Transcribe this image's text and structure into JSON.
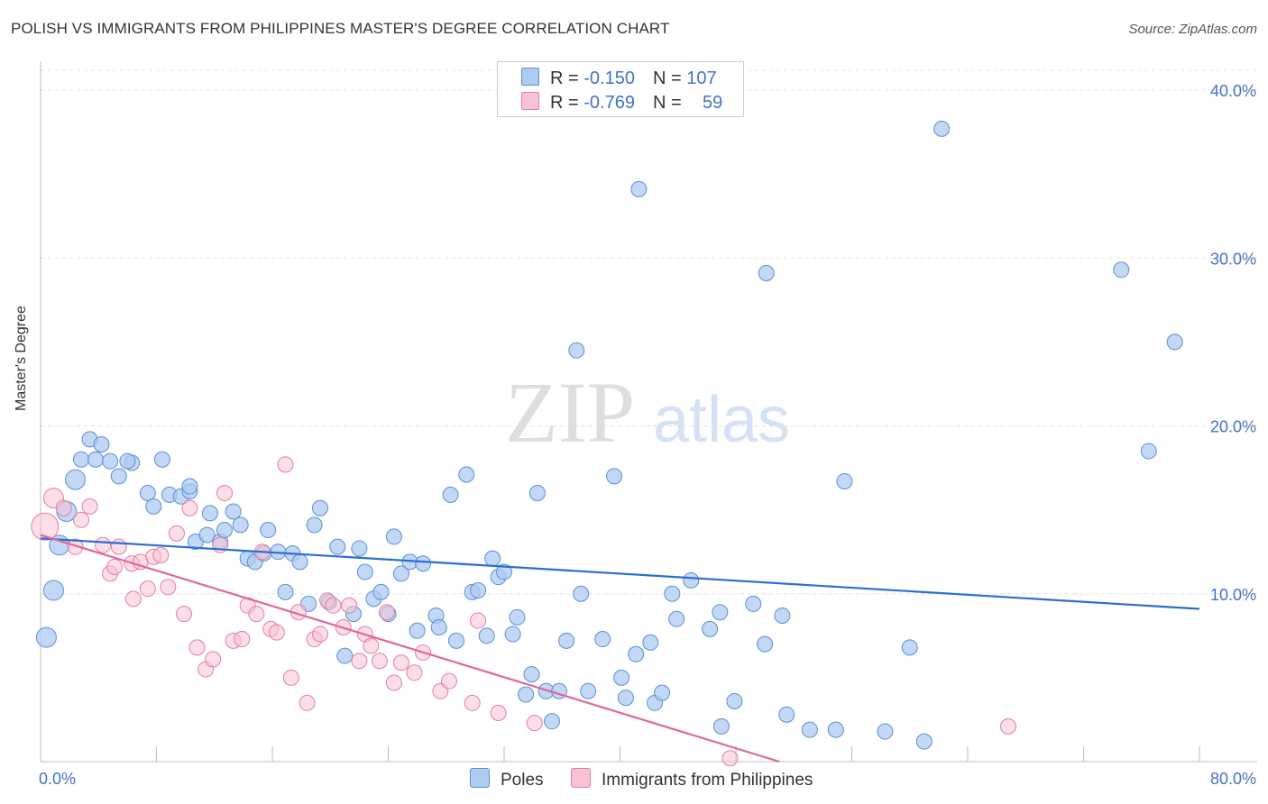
{
  "title": "POLISH VS IMMIGRANTS FROM PHILIPPINES MASTER'S DEGREE CORRELATION CHART",
  "source": "Source: ZipAtlas.com",
  "watermark": {
    "zip": "ZIP",
    "atlas": "atlas"
  },
  "colors": {
    "poles_fill": "#aecbf0",
    "poles_stroke": "#5b8fd6",
    "poles_line": "#2a6fd0",
    "phil_fill": "#f7c2d3",
    "phil_stroke": "#e17fa3",
    "phil_line": "#e0679a",
    "axis_label": "#4472c4",
    "grid": "#e0e0e0"
  },
  "legend": {
    "rows": [
      {
        "r_label": "R = ",
        "r_value": "-0.150",
        "n_label": "N = ",
        "n_value": "107"
      },
      {
        "r_label": "R = ",
        "r_value": "-0.769",
        "n_label": "N = ",
        "n_value": "59"
      }
    ]
  },
  "chart_data": {
    "type": "scatter",
    "title": "POLISH VS IMMIGRANTS FROM PHILIPPINES MASTER'S DEGREE CORRELATION CHART",
    "xlabel": "",
    "ylabel": "Master's Degree",
    "xlim": [
      0,
      80
    ],
    "ylim": [
      0,
      40
    ],
    "x_tick_labels": [
      "0.0%",
      "80.0%"
    ],
    "y_ticks": [
      10,
      20,
      30,
      40
    ],
    "y_tick_labels": [
      "10.0%",
      "20.0%",
      "30.0%",
      "40.0%"
    ],
    "grid": true,
    "legend_position": "top-center",
    "series": [
      {
        "name": "Poles",
        "trend": {
          "x0": 0,
          "y0": 13.3,
          "x1": 80,
          "y1": 9.1
        },
        "points": [
          [
            0.4,
            7.4,
            2
          ],
          [
            0.9,
            10.2,
            2
          ],
          [
            1.3,
            12.9,
            2
          ],
          [
            1.8,
            14.9,
            2
          ],
          [
            2.4,
            16.8,
            2
          ],
          [
            2.8,
            18.0,
            1.5
          ],
          [
            3.4,
            19.2,
            1.5
          ],
          [
            3.8,
            18.0,
            1.5
          ],
          [
            4.2,
            18.9,
            1.5
          ],
          [
            4.8,
            17.9,
            1.5
          ],
          [
            5.4,
            17.0,
            1.5
          ],
          [
            6.3,
            17.8,
            1.5
          ],
          [
            6.0,
            17.9,
            1.5
          ],
          [
            7.4,
            16.0,
            1.5
          ],
          [
            7.8,
            15.2,
            1.5
          ],
          [
            8.4,
            18.0,
            1.5
          ],
          [
            8.9,
            15.9,
            1.5
          ],
          [
            9.7,
            15.8,
            1.5
          ],
          [
            10.3,
            16.1,
            1.5
          ],
          [
            10.3,
            16.4,
            1.5
          ],
          [
            10.7,
            13.1,
            1.5
          ],
          [
            11.5,
            13.5,
            1.5
          ],
          [
            11.7,
            14.8,
            1.5
          ],
          [
            12.4,
            13.1,
            1.5
          ],
          [
            12.7,
            13.8,
            1.5
          ],
          [
            13.3,
            14.9,
            1.5
          ],
          [
            13.8,
            14.1,
            1.5
          ],
          [
            14.3,
            12.1,
            1.5
          ],
          [
            14.8,
            11.9,
            1.5
          ],
          [
            15.4,
            12.4,
            1.5
          ],
          [
            15.7,
            13.8,
            1.5
          ],
          [
            16.4,
            12.5,
            1.5
          ],
          [
            16.9,
            10.1,
            1.5
          ],
          [
            17.4,
            12.4,
            1.5
          ],
          [
            17.9,
            11.9,
            1.5
          ],
          [
            18.5,
            9.4,
            1.5
          ],
          [
            18.9,
            14.1,
            1.5
          ],
          [
            19.3,
            15.1,
            1.5
          ],
          [
            19.9,
            9.5,
            1.5
          ],
          [
            20.5,
            12.8,
            1.5
          ],
          [
            21.0,
            6.3,
            1.5
          ],
          [
            21.6,
            8.8,
            1.5
          ],
          [
            22.0,
            12.7,
            1.5
          ],
          [
            22.4,
            11.3,
            1.5
          ],
          [
            23.0,
            9.7,
            1.5
          ],
          [
            23.5,
            10.1,
            1.5
          ],
          [
            24.0,
            8.8,
            1.5
          ],
          [
            24.4,
            13.4,
            1.5
          ],
          [
            24.9,
            11.2,
            1.5
          ],
          [
            25.5,
            11.9,
            1.5
          ],
          [
            26.0,
            7.8,
            1.5
          ],
          [
            26.4,
            11.8,
            1.5
          ],
          [
            27.3,
            8.7,
            1.5
          ],
          [
            27.5,
            8.0,
            1.5
          ],
          [
            28.3,
            15.9,
            1.5
          ],
          [
            28.7,
            7.2,
            1.5
          ],
          [
            29.4,
            17.1,
            1.5
          ],
          [
            29.8,
            10.1,
            1.5
          ],
          [
            30.2,
            10.2,
            1.5
          ],
          [
            30.8,
            7.5,
            1.5
          ],
          [
            31.2,
            12.1,
            1.5
          ],
          [
            31.6,
            11.0,
            1.5
          ],
          [
            32.0,
            11.3,
            1.5
          ],
          [
            32.6,
            7.6,
            1.5
          ],
          [
            32.9,
            8.6,
            1.5
          ],
          [
            33.5,
            4.0,
            1.5
          ],
          [
            33.9,
            5.2,
            1.5
          ],
          [
            34.3,
            16.0,
            1.5
          ],
          [
            34.9,
            4.2,
            1.5
          ],
          [
            35.3,
            2.4,
            1.5
          ],
          [
            35.8,
            4.2,
            1.5
          ],
          [
            36.3,
            7.2,
            1.5
          ],
          [
            37.0,
            24.5,
            1.5
          ],
          [
            37.3,
            10.0,
            1.5
          ],
          [
            37.8,
            4.2,
            1.5
          ],
          [
            38.8,
            7.3,
            1.5
          ],
          [
            39.6,
            17.0,
            1.5
          ],
          [
            40.1,
            5.0,
            1.5
          ],
          [
            40.4,
            3.8,
            1.5
          ],
          [
            41.1,
            6.4,
            1.5
          ],
          [
            41.3,
            34.1,
            1.5
          ],
          [
            42.1,
            7.1,
            1.5
          ],
          [
            42.4,
            3.5,
            1.5
          ],
          [
            42.9,
            4.1,
            1.5
          ],
          [
            43.6,
            10.0,
            1.5
          ],
          [
            43.9,
            8.5,
            1.5
          ],
          [
            44.9,
            10.8,
            1.5
          ],
          [
            46.2,
            7.9,
            1.5
          ],
          [
            46.9,
            8.9,
            1.5
          ],
          [
            47.0,
            2.1,
            1.5
          ],
          [
            47.9,
            3.6,
            1.5
          ],
          [
            49.2,
            9.4,
            1.5
          ],
          [
            50.0,
            7.0,
            1.5
          ],
          [
            50.1,
            29.1,
            1.5
          ],
          [
            51.2,
            8.7,
            1.5
          ],
          [
            51.5,
            2.8,
            1.5
          ],
          [
            53.1,
            1.9,
            1.5
          ],
          [
            54.9,
            1.9,
            1.5
          ],
          [
            55.5,
            16.7,
            1.5
          ],
          [
            58.3,
            1.8,
            1.5
          ],
          [
            60.0,
            6.8,
            1.5
          ],
          [
            61.0,
            1.2,
            1.5
          ],
          [
            62.2,
            37.7,
            1.5
          ],
          [
            74.6,
            29.3,
            1.5
          ],
          [
            76.5,
            18.5,
            1.5
          ],
          [
            78.3,
            25.0,
            1.5
          ]
        ]
      },
      {
        "name": "Immigrants from Philippines",
        "trend": {
          "x0": 0,
          "y0": 13.5,
          "x1": 51.0,
          "y1": 0
        },
        "points": [
          [
            0.3,
            14.0,
            3
          ],
          [
            0.9,
            15.7,
            2
          ],
          [
            1.6,
            15.1,
            1.5
          ],
          [
            2.4,
            12.8,
            1.5
          ],
          [
            2.8,
            14.4,
            1.5
          ],
          [
            3.4,
            15.2,
            1.5
          ],
          [
            4.3,
            12.9,
            1.5
          ],
          [
            4.8,
            11.2,
            1.5
          ],
          [
            5.1,
            11.6,
            1.5
          ],
          [
            5.4,
            12.8,
            1.5
          ],
          [
            6.3,
            11.8,
            1.5
          ],
          [
            6.4,
            9.7,
            1.5
          ],
          [
            6.9,
            11.9,
            1.5
          ],
          [
            7.4,
            10.3,
            1.5
          ],
          [
            7.8,
            12.2,
            1.5
          ],
          [
            8.3,
            12.3,
            1.5
          ],
          [
            8.8,
            10.4,
            1.5
          ],
          [
            9.4,
            13.6,
            1.5
          ],
          [
            9.9,
            8.8,
            1.5
          ],
          [
            10.3,
            15.1,
            1.5
          ],
          [
            10.8,
            6.8,
            1.5
          ],
          [
            11.4,
            5.5,
            1.5
          ],
          [
            11.9,
            6.1,
            1.5
          ],
          [
            12.4,
            12.9,
            1.5
          ],
          [
            12.7,
            16.0,
            1.5
          ],
          [
            13.3,
            7.2,
            1.5
          ],
          [
            13.9,
            7.3,
            1.5
          ],
          [
            14.3,
            9.3,
            1.5
          ],
          [
            14.9,
            8.8,
            1.5
          ],
          [
            15.3,
            12.5,
            1.5
          ],
          [
            15.9,
            7.9,
            1.5
          ],
          [
            16.3,
            7.7,
            1.5
          ],
          [
            16.9,
            17.7,
            1.5
          ],
          [
            17.3,
            5.0,
            1.5
          ],
          [
            17.8,
            8.9,
            1.5
          ],
          [
            18.4,
            3.5,
            1.5
          ],
          [
            18.9,
            7.3,
            1.5
          ],
          [
            19.3,
            7.6,
            1.5
          ],
          [
            19.8,
            9.6,
            1.5
          ],
          [
            20.2,
            9.3,
            1.5
          ],
          [
            20.9,
            8.0,
            1.5
          ],
          [
            21.3,
            9.3,
            1.5
          ],
          [
            22.0,
            6.0,
            1.5
          ],
          [
            22.4,
            7.6,
            1.5
          ],
          [
            22.8,
            6.9,
            1.5
          ],
          [
            23.4,
            6.0,
            1.5
          ],
          [
            23.9,
            8.9,
            1.5
          ],
          [
            24.4,
            4.7,
            1.5
          ],
          [
            24.9,
            5.9,
            1.5
          ],
          [
            25.8,
            5.3,
            1.5
          ],
          [
            26.4,
            6.5,
            1.5
          ],
          [
            27.6,
            4.2,
            1.5
          ],
          [
            28.2,
            4.8,
            1.5
          ],
          [
            29.8,
            3.5,
            1.5
          ],
          [
            30.2,
            8.4,
            1.5
          ],
          [
            31.6,
            2.9,
            1.5
          ],
          [
            34.1,
            2.3,
            1.5
          ],
          [
            47.6,
            0.2,
            1.5
          ],
          [
            66.8,
            2.1,
            1.5
          ]
        ]
      }
    ]
  },
  "bottom_legend": {
    "poles": "Poles",
    "phil": "Immigrants from Philippines"
  }
}
